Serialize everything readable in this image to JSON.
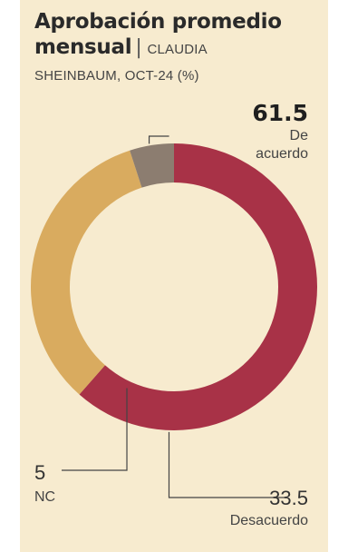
{
  "title": {
    "line1": "Aprobación promedio",
    "line2_bold": "mensual",
    "separator": "|",
    "line2_sub": "CLAUDIA",
    "line3": "SHEINBAUM, OCT-24 (%)"
  },
  "chart_data": {
    "type": "pie",
    "variant": "donut",
    "title": "Aprobación promedio mensual | CLAUDIA SHEINBAUM, OCT-24 (%)",
    "slices": [
      {
        "label": "De acuerdo",
        "label_lines": [
          "De",
          "acuerdo"
        ],
        "value": 61.5,
        "value_text": "61.5",
        "color": "#a83247",
        "emphasis": true
      },
      {
        "label": "Desacuerdo",
        "label_lines": [
          "Desacuerdo"
        ],
        "value": 33.5,
        "value_text": "33.5",
        "color": "#d9ab5f",
        "emphasis": false
      },
      {
        "label": "NC",
        "label_lines": [
          "NC"
        ],
        "value": 5,
        "value_text": "5",
        "color": "#8c7d70",
        "emphasis": false
      }
    ]
  },
  "colors": {
    "background": "#f7ebcf",
    "leader_line": "#444444"
  }
}
